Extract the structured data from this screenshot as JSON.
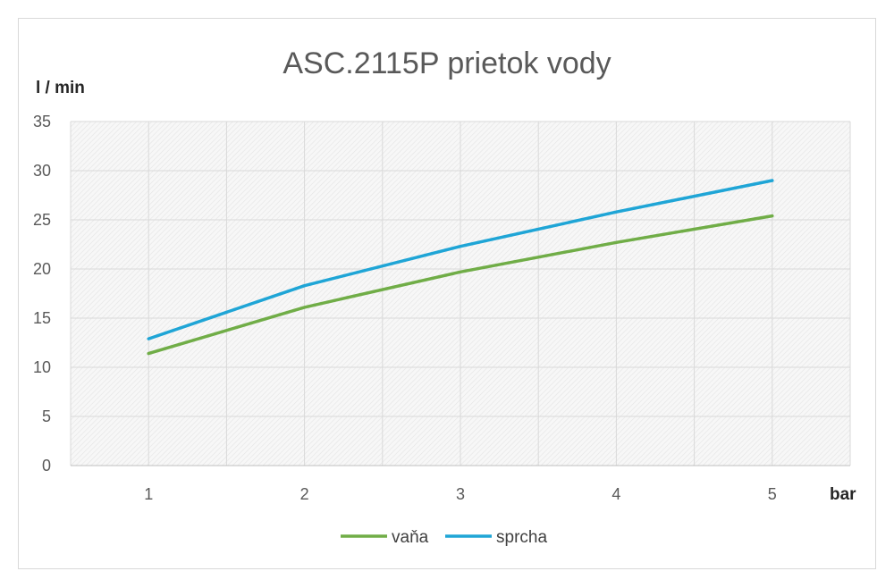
{
  "chart_data": {
    "type": "line",
    "title": "ASC.2115P prietok vody",
    "xlabel": "bar",
    "ylabel": "l / min",
    "categories": [
      "1",
      "2",
      "3",
      "4",
      "5"
    ],
    "ylim": [
      0,
      35
    ],
    "yticks": [
      "0",
      "5",
      "10",
      "15",
      "20",
      "25",
      "30",
      "35"
    ],
    "grid": true,
    "legend_position": "bottom",
    "series": [
      {
        "name": "vaňa",
        "color": "#70ad47",
        "values": [
          11.4,
          16.1,
          19.7,
          22.7,
          25.4
        ]
      },
      {
        "name": "sprcha",
        "color": "#1fa5d6",
        "values": [
          12.9,
          18.3,
          22.3,
          25.8,
          29.0
        ]
      }
    ]
  }
}
